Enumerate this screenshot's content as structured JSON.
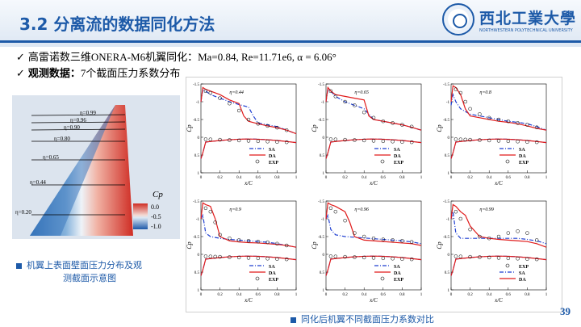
{
  "header": {
    "title": "3.2 分离流的数据同化方法",
    "logo_cn": "西北工業大學",
    "logo_en": "NORTHWESTERN POLYTECHNICAL UNIVERSITY"
  },
  "bullets": [
    {
      "check": "✓",
      "text": "高雷诺数三维ONERA-M6机翼同化：Ma=0.84, Re=11.71e6, α = 6.06°"
    },
    {
      "check": "✓",
      "bold": "观测数据：",
      "text": "7个截面压力系数分布"
    }
  ],
  "wing_figure": {
    "stations": [
      "η=0.99",
      "η=0.96",
      "η=0.90",
      "η=0.80",
      "η=0.65",
      "η=0.44",
      "η=0.20"
    ],
    "colorbar_title": "Cp",
    "colorbar_ticks": [
      "0.0",
      "-0.5",
      "-1.0"
    ],
    "caption_line1": "机翼上表面壁面压力分布及观",
    "caption_line2": "测截面示意图"
  },
  "plots_caption": "同化后机翼不同截面压力系数对比",
  "page_number": "39",
  "chart_data": [
    {
      "type": "line",
      "title": "η=0.44",
      "xlabel": "x/C",
      "ylabel": "Cp",
      "xlim": [
        0,
        1
      ],
      "ylim": [
        1,
        -1.5
      ],
      "legend": [
        "SA",
        "DA",
        "EXP"
      ],
      "series": [
        {
          "name": "SA",
          "x": [
            0,
            0.02,
            0.05,
            0.1,
            0.2,
            0.3,
            0.4,
            0.5,
            0.55,
            0.6,
            0.7,
            0.8,
            0.9,
            1.0
          ],
          "y": [
            -1.0,
            -1.35,
            -1.3,
            -1.2,
            -1.1,
            -1.0,
            -0.92,
            -0.85,
            -0.6,
            -0.4,
            -0.35,
            -0.3,
            -0.2,
            -0.1
          ]
        },
        {
          "name": "DA",
          "x": [
            0,
            0.02,
            0.05,
            0.1,
            0.2,
            0.3,
            0.4,
            0.45,
            0.5,
            0.6,
            0.7,
            0.8,
            0.9,
            1.0
          ],
          "y": [
            -1.0,
            -1.4,
            -1.35,
            -1.3,
            -1.2,
            -1.05,
            -0.95,
            -0.6,
            -0.45,
            -0.38,
            -0.32,
            -0.27,
            -0.2,
            -0.1
          ]
        },
        {
          "name": "EXP",
          "x": [
            0.05,
            0.1,
            0.2,
            0.3,
            0.4,
            0.5,
            0.6,
            0.7,
            0.8,
            0.9
          ],
          "y": [
            -1.3,
            -1.25,
            -1.1,
            -0.95,
            -0.75,
            -0.5,
            -0.38,
            -0.32,
            -0.27,
            -0.2
          ]
        }
      ]
    },
    {
      "type": "line",
      "title": "η=0.65",
      "xlabel": "x/C",
      "ylabel": "Cp",
      "xlim": [
        0,
        1
      ],
      "ylim": [
        1,
        -1.5
      ],
      "legend": [
        "SA",
        "DA",
        "EXP"
      ],
      "series": [
        {
          "name": "SA",
          "x": [
            0,
            0.02,
            0.05,
            0.1,
            0.2,
            0.3,
            0.4,
            0.5,
            0.6,
            0.7,
            0.8,
            0.9,
            1.0
          ],
          "y": [
            -1.0,
            -1.35,
            -1.3,
            -1.15,
            -1.0,
            -0.9,
            -0.8,
            -0.5,
            -0.45,
            -0.4,
            -0.35,
            -0.28,
            -0.2
          ]
        },
        {
          "name": "DA",
          "x": [
            0,
            0.02,
            0.05,
            0.1,
            0.2,
            0.3,
            0.4,
            0.45,
            0.5,
            0.6,
            0.7,
            0.8,
            0.9,
            1.0
          ],
          "y": [
            -1.0,
            -1.4,
            -1.3,
            -1.2,
            -1.15,
            -1.1,
            -1.05,
            -0.6,
            -0.5,
            -0.45,
            -0.4,
            -0.35,
            -0.28,
            -0.2
          ]
        },
        {
          "name": "EXP",
          "x": [
            0.05,
            0.1,
            0.2,
            0.3,
            0.4,
            0.5,
            0.6,
            0.7,
            0.8,
            0.9
          ],
          "y": [
            -1.3,
            -1.15,
            -1.0,
            -0.9,
            -0.7,
            -0.55,
            -0.45,
            -0.4,
            -0.35,
            -0.3
          ]
        }
      ]
    },
    {
      "type": "line",
      "title": "η=0.8",
      "xlabel": "x/C",
      "ylabel": "Cp",
      "xlim": [
        0,
        1
      ],
      "ylim": [
        1,
        -1.5
      ],
      "legend": [
        "SA",
        "DA",
        "EXP"
      ],
      "series": [
        {
          "name": "SA",
          "x": [
            0,
            0.02,
            0.05,
            0.1,
            0.2,
            0.3,
            0.4,
            0.5,
            0.6,
            0.7,
            0.8,
            0.9,
            1.0
          ],
          "y": [
            -0.9,
            -1.2,
            -1.0,
            -0.8,
            -0.65,
            -0.6,
            -0.55,
            -0.5,
            -0.45,
            -0.42,
            -0.38,
            -0.3,
            -0.2
          ]
        },
        {
          "name": "DA",
          "x": [
            0,
            0.02,
            0.05,
            0.1,
            0.15,
            0.2,
            0.3,
            0.4,
            0.5,
            0.6,
            0.7,
            0.8,
            0.9,
            1.0
          ],
          "y": [
            -1.0,
            -1.45,
            -1.4,
            -1.2,
            -0.8,
            -0.6,
            -0.55,
            -0.5,
            -0.45,
            -0.42,
            -0.38,
            -0.32,
            -0.25,
            -0.2
          ]
        },
        {
          "name": "EXP",
          "x": [
            0.05,
            0.1,
            0.15,
            0.2,
            0.3,
            0.4,
            0.5,
            0.6,
            0.7,
            0.8,
            0.9
          ],
          "y": [
            -1.35,
            -1.25,
            -1.0,
            -0.8,
            -0.65,
            -0.55,
            -0.5,
            -0.45,
            -0.4,
            -0.35,
            -0.28
          ]
        }
      ]
    },
    {
      "type": "line",
      "title": "η=0.9",
      "xlabel": "x/C",
      "ylabel": "Cp",
      "xlim": [
        0,
        1
      ],
      "ylim": [
        1,
        -1.5
      ],
      "legend": [
        "SA",
        "DA",
        "EXP"
      ],
      "series": [
        {
          "name": "SA",
          "x": [
            0,
            0.02,
            0.05,
            0.1,
            0.2,
            0.3,
            0.4,
            0.5,
            0.6,
            0.7,
            0.8,
            0.9,
            1.0
          ],
          "y": [
            -1.0,
            -1.1,
            -0.6,
            -0.5,
            -0.45,
            -0.42,
            -0.4,
            -0.38,
            -0.36,
            -0.34,
            -0.3,
            -0.25,
            -0.2
          ]
        },
        {
          "name": "DA",
          "x": [
            0,
            0.02,
            0.05,
            0.1,
            0.15,
            0.2,
            0.3,
            0.4,
            0.5,
            0.6,
            0.7,
            0.8,
            0.9,
            1.0
          ],
          "y": [
            -1.0,
            -1.45,
            -1.4,
            -1.35,
            -1.0,
            -0.5,
            -0.38,
            -0.35,
            -0.33,
            -0.32,
            -0.3,
            -0.28,
            -0.25,
            -0.2
          ]
        },
        {
          "name": "EXP",
          "x": [
            0.05,
            0.1,
            0.15,
            0.2,
            0.3,
            0.4,
            0.5,
            0.6,
            0.7,
            0.8,
            0.9
          ],
          "y": [
            -1.3,
            -1.2,
            -0.9,
            -0.55,
            -0.45,
            -0.4,
            -0.38,
            -0.36,
            -0.34,
            -0.3,
            -0.25
          ]
        }
      ]
    },
    {
      "type": "line",
      "title": "η=0.96",
      "xlabel": "x/C",
      "ylabel": "Cp",
      "xlim": [
        0,
        1
      ],
      "ylim": [
        1,
        -1.5
      ],
      "legend": [
        "SA",
        "DA",
        "EXP"
      ],
      "series": [
        {
          "name": "SA",
          "x": [
            0,
            0.02,
            0.05,
            0.1,
            0.2,
            0.3,
            0.4,
            0.5,
            0.6,
            0.7,
            0.8,
            0.9,
            1.0
          ],
          "y": [
            -1.0,
            -1.1,
            -0.7,
            -0.55,
            -0.5,
            -0.48,
            -0.46,
            -0.44,
            -0.42,
            -0.4,
            -0.38,
            -0.35,
            -0.3
          ]
        },
        {
          "name": "DA",
          "x": [
            0,
            0.02,
            0.05,
            0.1,
            0.2,
            0.25,
            0.3,
            0.4,
            0.5,
            0.6,
            0.7,
            0.8,
            0.9,
            1.0
          ],
          "y": [
            -1.0,
            -1.45,
            -1.4,
            -1.35,
            -1.2,
            -0.9,
            -0.5,
            -0.4,
            -0.38,
            -0.36,
            -0.34,
            -0.32,
            -0.3,
            -0.25
          ]
        },
        {
          "name": "EXP",
          "x": [
            0.05,
            0.1,
            0.2,
            0.3,
            0.4,
            0.5,
            0.6,
            0.7,
            0.8,
            0.9
          ],
          "y": [
            -1.3,
            -1.2,
            -0.95,
            -0.6,
            -0.5,
            -0.45,
            -0.42,
            -0.4,
            -0.38,
            -0.35
          ]
        }
      ]
    },
    {
      "type": "line",
      "title": "η=0.99",
      "xlabel": "x/C",
      "ylabel": "Cp",
      "xlim": [
        0,
        1
      ],
      "ylim": [
        1,
        -1.5
      ],
      "legend": [
        "EXP",
        "SA",
        "DA"
      ],
      "series": [
        {
          "name": "SA",
          "x": [
            0,
            0.02,
            0.05,
            0.1,
            0.2,
            0.3,
            0.4,
            0.5,
            0.6,
            0.7,
            0.8,
            0.9,
            1.0
          ],
          "y": [
            -1.0,
            -1.2,
            -0.6,
            -0.45,
            -0.45,
            -0.45,
            -0.45,
            -0.45,
            -0.45,
            -0.45,
            -0.42,
            -0.38,
            -0.3
          ]
        },
        {
          "name": "DA",
          "x": [
            0,
            0.02,
            0.05,
            0.1,
            0.15,
            0.2,
            0.3,
            0.4,
            0.5,
            0.6,
            0.7,
            0.8,
            0.9,
            1.0
          ],
          "y": [
            -1.0,
            -1.4,
            -1.35,
            -1.2,
            -1.1,
            -0.8,
            -0.5,
            -0.45,
            -0.42,
            -0.4,
            -0.38,
            -0.36,
            -0.3,
            -0.2
          ]
        },
        {
          "name": "EXP",
          "x": [
            0.05,
            0.1,
            0.2,
            0.3,
            0.4,
            0.5,
            0.6,
            0.7,
            0.8,
            0.9
          ],
          "y": [
            -1.2,
            -1.0,
            -0.7,
            -0.5,
            -0.45,
            -0.5,
            -0.6,
            -0.65,
            -0.6,
            -0.4
          ]
        }
      ]
    }
  ]
}
